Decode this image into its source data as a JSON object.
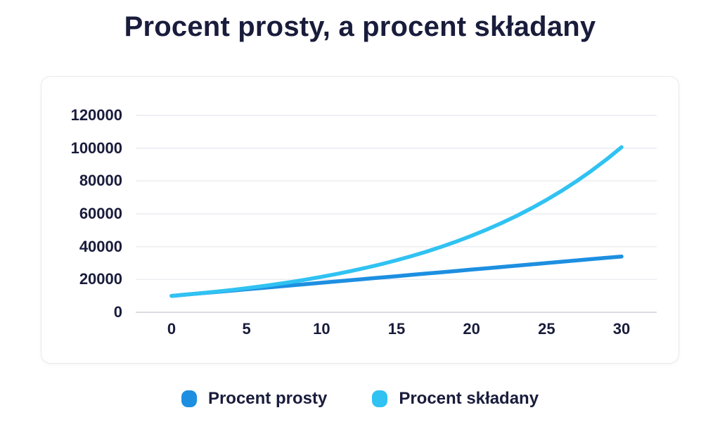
{
  "title": "Procent prosty, a procent składany",
  "legend": [
    {
      "label": "Procent prosty",
      "color": "#1d8fe1"
    },
    {
      "label": "Procent składany",
      "color": "#30c2f2"
    }
  ],
  "colors": {
    "text_navy": "#191c3b",
    "gridline": "#ececf2",
    "gridline_zero": "#cfcfd8",
    "card_border": "#e9e9ee"
  },
  "chart_data": {
    "type": "line",
    "title": "Procent prosty, a procent składany",
    "xlabel": "",
    "ylabel": "",
    "xlim": [
      0,
      30
    ],
    "ylim": [
      0,
      120000
    ],
    "x_ticks": [
      0,
      5,
      10,
      15,
      20,
      25,
      30
    ],
    "y_ticks": [
      0,
      20000,
      40000,
      60000,
      80000,
      100000,
      120000
    ],
    "grid": "horizontal",
    "legend_position": "bottom",
    "x": [
      0,
      1,
      2,
      3,
      4,
      5,
      6,
      7,
      8,
      9,
      10,
      11,
      12,
      13,
      14,
      15,
      16,
      17,
      18,
      19,
      20,
      21,
      22,
      23,
      24,
      25,
      26,
      27,
      28,
      29,
      30
    ],
    "series": [
      {
        "name": "Procent prosty",
        "color": "#1d8fe1",
        "values": [
          10000,
          10800,
          11600,
          12400,
          13200,
          14000,
          14800,
          15600,
          16400,
          17200,
          18000,
          18800,
          19600,
          20400,
          21200,
          22000,
          22800,
          23600,
          24400,
          25200,
          26000,
          26800,
          27600,
          28400,
          29200,
          30000,
          30800,
          31600,
          32400,
          33200,
          34000
        ]
      },
      {
        "name": "Procent składany",
        "color": "#30c2f2",
        "values": [
          10000,
          10800,
          11664,
          12597,
          13605,
          14693,
          15869,
          17138,
          18509,
          19990,
          21589,
          23316,
          25182,
          27196,
          29372,
          31722,
          34259,
          37000,
          39960,
          43157,
          46610,
          50338,
          54365,
          58715,
          63412,
          68485,
          73964,
          79881,
          86271,
          93173,
          100627
        ]
      }
    ]
  }
}
